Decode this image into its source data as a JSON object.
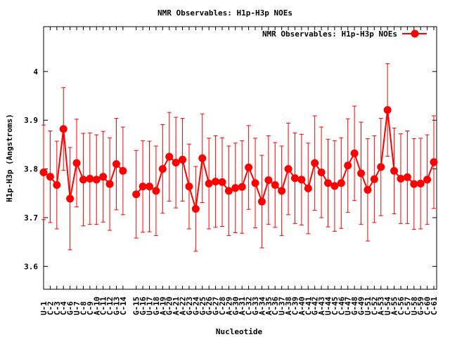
{
  "chart_data": {
    "type": "line",
    "title": "NMR Observables: H1p-H3p NOEs",
    "xlabel": "Nucleotide",
    "ylabel": "H1p-H3p (Angstroms)",
    "ylim": [
      3.553,
      4.092
    ],
    "yticks": [
      3.6,
      3.7,
      3.8,
      3.9,
      4.0
    ],
    "ytick_labels": [
      "3.6",
      "3.7",
      "3.8",
      "3.9",
      "4"
    ],
    "legend": "top-right",
    "gap_after_index": 12,
    "categories": [
      "U-1",
      "C-2",
      "C-3",
      "C-4",
      "G-6",
      "U-7",
      "C-8",
      "C-9",
      "A-10",
      "C-11",
      "C-12",
      "G-13",
      "C-14",
      "G-15",
      "G-16",
      "U-17",
      "G-18",
      "A-19",
      "G-20",
      "A-21",
      "A-22",
      "G-23",
      "G-24",
      "G-25",
      "G-26",
      "G-27",
      "C-28",
      "A-29",
      "G-30",
      "A-31",
      "C-32",
      "G-33",
      "A-34",
      "A-35",
      "C-36",
      "U-37",
      "A-38",
      "C-39",
      "A-40",
      "C-41",
      "G-42",
      "A-43",
      "U-44",
      "C-45",
      "C-46",
      "U-47",
      "G-48",
      "G-49",
      "U-51",
      "C-52",
      "A-53",
      "U-54",
      "A-55",
      "C-56",
      "C-57",
      "U-58",
      "G-59",
      "C-60",
      "C-61"
    ],
    "series": [
      {
        "name": "NMR Observables: H1p-H3p NOEs",
        "color": "#ff0000",
        "values": [
          3.793,
          3.784,
          3.767,
          3.882,
          3.739,
          3.812,
          3.778,
          3.78,
          3.778,
          3.784,
          3.769,
          3.81,
          3.796,
          3.748,
          3.764,
          3.764,
          3.755,
          3.8,
          3.825,
          3.813,
          3.819,
          3.764,
          3.718,
          3.822,
          3.77,
          3.774,
          3.773,
          3.755,
          3.761,
          3.763,
          3.803,
          3.771,
          3.733,
          3.777,
          3.767,
          3.755,
          3.8,
          3.781,
          3.778,
          3.76,
          3.812,
          3.793,
          3.771,
          3.765,
          3.771,
          3.807,
          3.832,
          3.791,
          3.757,
          3.779,
          3.804,
          3.921,
          3.796,
          3.78,
          3.783,
          3.769,
          3.77,
          3.778,
          3.814
        ],
        "errors": [
          0.097,
          0.094,
          0.09,
          0.085,
          0.105,
          0.09,
          0.095,
          0.094,
          0.092,
          0.093,
          0.095,
          0.094,
          0.09,
          0.09,
          0.094,
          0.093,
          0.092,
          0.091,
          0.091,
          0.093,
          0.085,
          0.087,
          0.087,
          0.091,
          0.093,
          0.094,
          0.091,
          0.092,
          0.092,
          0.095,
          0.086,
          0.092,
          0.095,
          0.091,
          0.087,
          0.092,
          0.094,
          0.093,
          0.093,
          0.093,
          0.097,
          0.093,
          0.09,
          0.093,
          0.093,
          0.096,
          0.097,
          0.105,
          0.105,
          0.089,
          0.1,
          0.095,
          0.088,
          0.092,
          0.095,
          0.093,
          0.093,
          0.092,
          0.095
        ]
      }
    ]
  }
}
